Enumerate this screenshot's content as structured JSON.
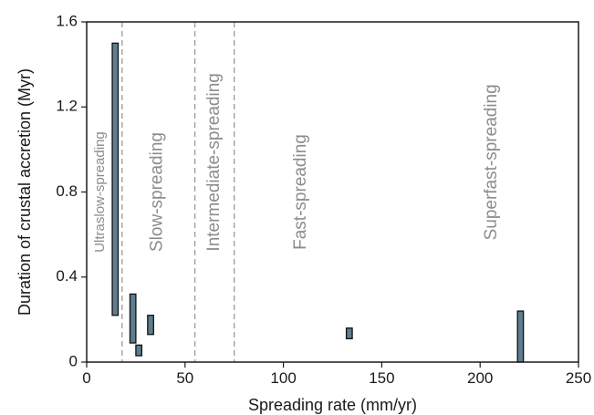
{
  "chart_data": {
    "type": "bar",
    "title": "",
    "xlabel": "Spreading rate (mm/yr)",
    "ylabel": "Duration of crustal accretion (Myr)",
    "xlim": [
      0,
      250
    ],
    "ylim": [
      0,
      1.6
    ],
    "xticks": [
      0,
      50,
      100,
      150,
      200,
      250
    ],
    "yticks": [
      0,
      0.4,
      0.8,
      1.2,
      1.6
    ],
    "ytick_labels": [
      "0",
      "0.4",
      "0.8",
      "1.2",
      "1.6"
    ],
    "grid": false,
    "bar_color": "#5e7d8e",
    "divider_color": "#9a9a9a",
    "region_text_color": "#8c8c8c",
    "dividers": [
      18,
      55,
      75
    ],
    "regions": [
      {
        "label": "Ultraslow-spreading",
        "x": 7,
        "y": 0.8
      },
      {
        "label": "Slow-spreading",
        "x": 36,
        "y": 0.8
      },
      {
        "label": "Intermediate-spreading",
        "x": 65,
        "y": 0.94
      },
      {
        "label": "Fast-spreading",
        "x": 109,
        "y": 0.8
      },
      {
        "label": "Superfast-spreading",
        "x": 206,
        "y": 0.94
      }
    ],
    "bars": [
      {
        "x0": 13,
        "x1": 16,
        "ymin": 0.22,
        "ymax": 1.5
      },
      {
        "x0": 22,
        "x1": 25,
        "ymin": 0.09,
        "ymax": 0.32
      },
      {
        "x0": 31,
        "x1": 34,
        "ymin": 0.13,
        "ymax": 0.22
      },
      {
        "x0": 25,
        "x1": 28,
        "ymin": 0.03,
        "ymax": 0.08
      },
      {
        "x0": 132,
        "x1": 135,
        "ymin": 0.11,
        "ymax": 0.16
      },
      {
        "x0": 219,
        "x1": 222,
        "ymin": 0.0,
        "ymax": 0.24
      }
    ]
  }
}
